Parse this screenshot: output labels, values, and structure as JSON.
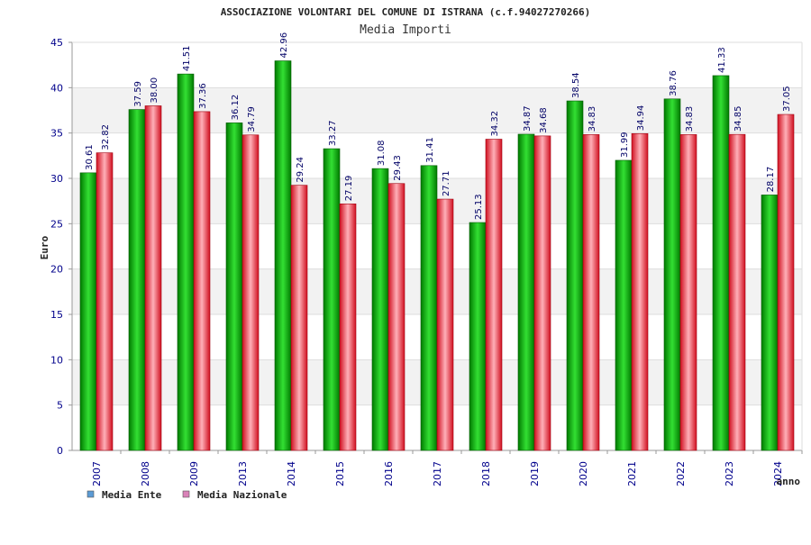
{
  "chart_data": {
    "type": "bar",
    "title": "ASSOCIAZIONE VOLONTARI DEL COMUNE DI ISTRANA (c.f.94027270266)",
    "subtitle": "Media Importi",
    "xlabel": "anno",
    "ylabel": "Euro",
    "ylim": [
      0,
      45
    ],
    "yticks": [
      0,
      5,
      10,
      15,
      20,
      25,
      30,
      35,
      40,
      45
    ],
    "grid": true,
    "legend_position": "bottom-left",
    "categories": [
      "2007",
      "2008",
      "2009",
      "2013",
      "2014",
      "2015",
      "2016",
      "2017",
      "2018",
      "2019",
      "2020",
      "2021",
      "2022",
      "2023",
      "2024"
    ],
    "series": [
      {
        "name": "Media Ente",
        "color": "#00b000",
        "legend_color": "#5b9bd5",
        "values": [
          30.61,
          37.59,
          41.51,
          36.12,
          42.96,
          33.27,
          31.08,
          31.41,
          25.13,
          34.87,
          38.54,
          31.99,
          38.76,
          41.33,
          28.17
        ],
        "labels": [
          "30.61",
          "37.59",
          "41.51",
          "36.12",
          "42.96",
          "33.27",
          "31.08",
          "31.41",
          "25.13",
          "34.87",
          "38.54",
          "31.99",
          "38.76",
          "41.33",
          "28.17"
        ]
      },
      {
        "name": "Media Nazionale",
        "color": "#e0202a",
        "legend_color": "#d982b8",
        "values": [
          32.82,
          38.0,
          37.36,
          34.79,
          29.24,
          27.19,
          29.43,
          27.71,
          34.32,
          34.68,
          34.83,
          34.94,
          34.83,
          34.85,
          37.05
        ],
        "labels": [
          "32.82",
          "38.00",
          "37.36",
          "34.79",
          "29.24",
          "27.19",
          "29.43",
          "27.71",
          "34.32",
          "34.68",
          "34.83",
          "34.94",
          "34.83",
          "34.85",
          "37.05"
        ]
      }
    ]
  }
}
